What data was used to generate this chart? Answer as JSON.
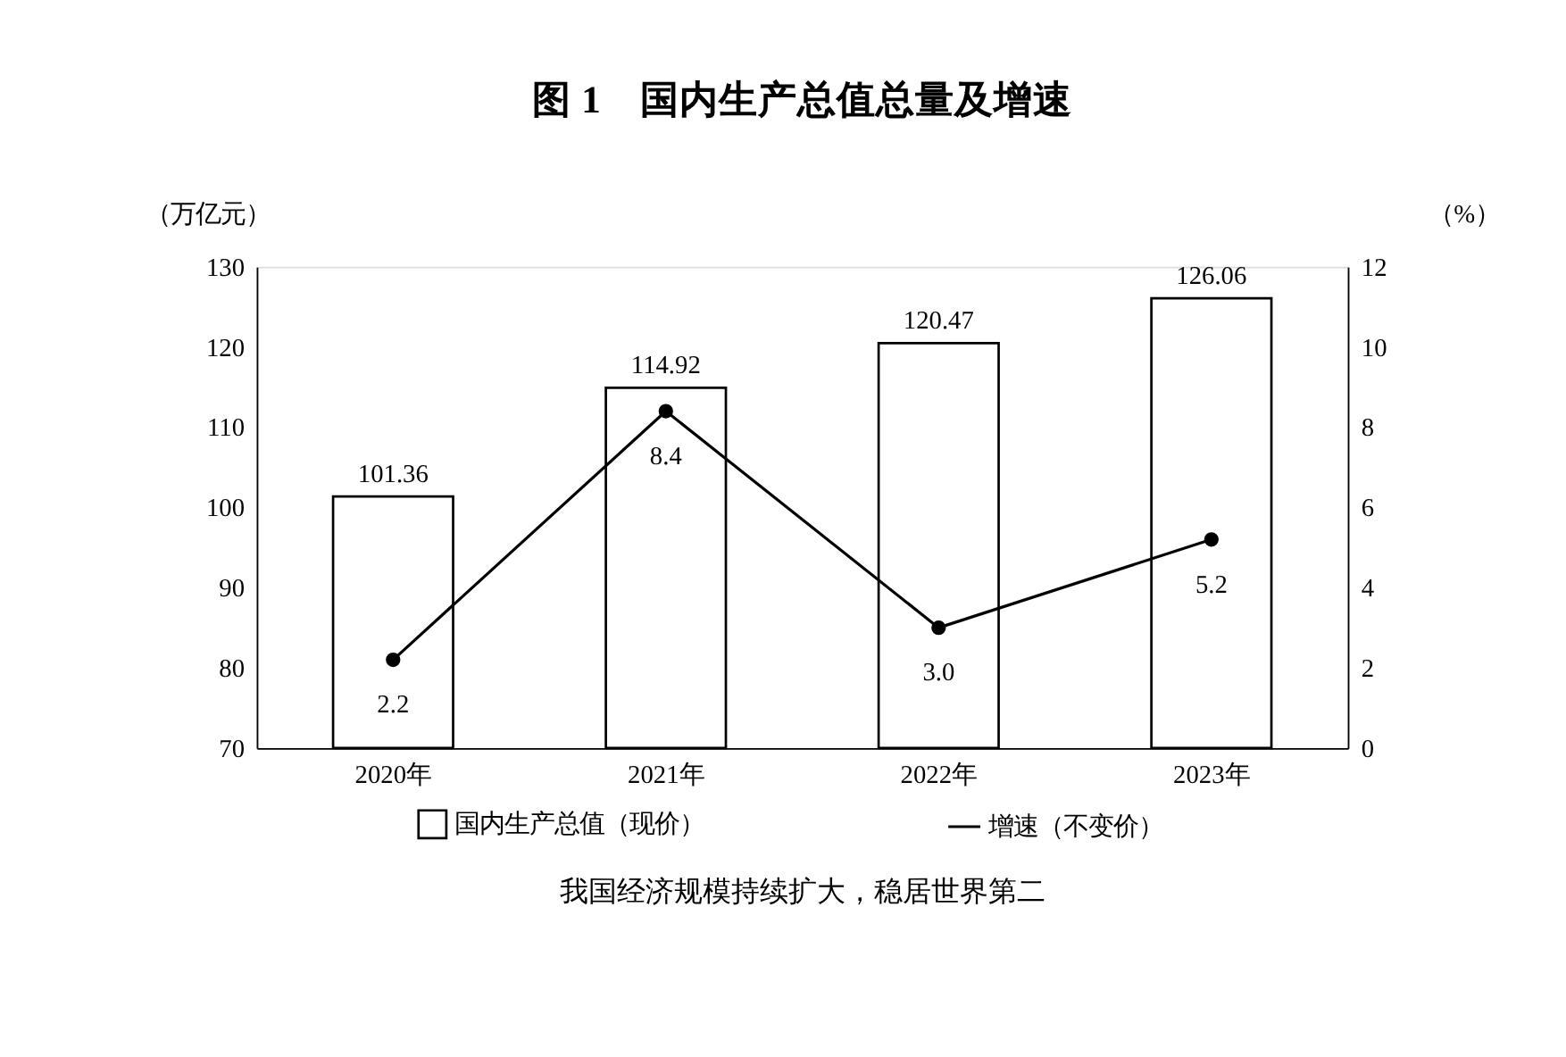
{
  "chart_data": {
    "type": "bar",
    "title": "图 1　国内生产总值总量及增速",
    "categories": [
      "2020年",
      "2021年",
      "2022年",
      "2023年"
    ],
    "ylabel": "（万亿元）",
    "y2label": "（%）",
    "ylim": [
      70,
      130
    ],
    "yticks": [
      70,
      80,
      90,
      100,
      110,
      120,
      130
    ],
    "y2lim": [
      0,
      12
    ],
    "y2ticks": [
      0,
      2,
      4,
      6,
      8,
      10,
      12
    ],
    "series": [
      {
        "name": "国内生产总值（现价）",
        "color": "#ffffff",
        "values": [
          101.36,
          114.92,
          120.47,
          126.06
        ],
        "value_labels": [
          "101.36",
          "114.92",
          "120.47",
          "126.06"
        ]
      },
      {
        "name": "增速（不变价）",
        "type": "line",
        "axis": "y2",
        "color": "#000000",
        "marker": "circle",
        "values": [
          2.2,
          8.4,
          3.0,
          5.2
        ],
        "value_labels": [
          "2.2",
          "8.4",
          "3.0",
          "5.2"
        ]
      }
    ],
    "legend": "bottom",
    "grid": false,
    "annotations": [
      "我国经济规模持续扩大，稳居世界第二"
    ]
  }
}
